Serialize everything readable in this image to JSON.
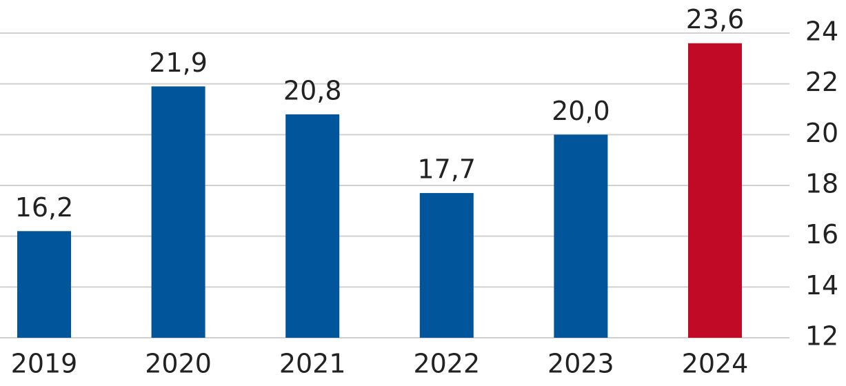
{
  "chart_data": {
    "type": "bar",
    "categories": [
      "2019",
      "2020",
      "2021",
      "2022",
      "2023",
      "2024"
    ],
    "values": [
      16.2,
      21.9,
      20.8,
      17.7,
      20.0,
      23.6
    ],
    "value_labels": [
      "16,2",
      "21,9",
      "20,8",
      "17,7",
      "20,0",
      "23,6"
    ],
    "colors": [
      "#00559b",
      "#00559b",
      "#00559b",
      "#00559b",
      "#00559b",
      "#c10a25"
    ],
    "ylim": [
      12,
      24
    ],
    "yticks": [
      12,
      14,
      16,
      18,
      20,
      22,
      24
    ],
    "y_axis_side": "right",
    "grid": true
  }
}
